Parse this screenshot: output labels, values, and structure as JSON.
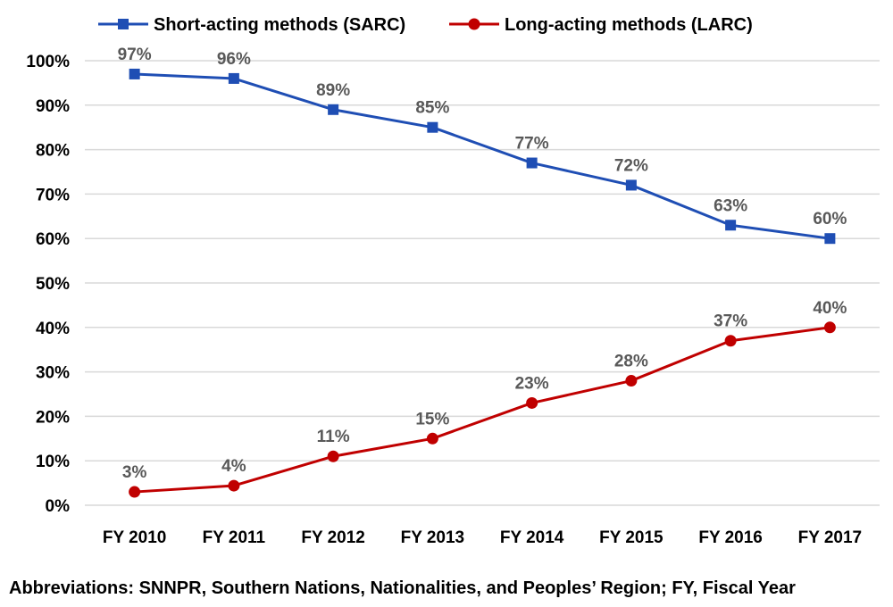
{
  "chart_data": {
    "type": "line",
    "title": "",
    "xlabel": "",
    "ylabel": "",
    "categories": [
      "FY 2010",
      "FY 2011",
      "FY 2012",
      "FY 2013",
      "FY 2014",
      "FY 2015",
      "FY 2016",
      "FY 2017"
    ],
    "series": [
      {
        "name": "Short-acting methods (SARC)",
        "values": [
          97,
          96,
          89,
          85,
          77,
          72,
          63,
          60
        ],
        "labels": [
          "97%",
          "96%",
          "89%",
          "85%",
          "77%",
          "72%",
          "63%",
          "60%"
        ],
        "color": "#1f4eb4",
        "marker": "square"
      },
      {
        "name": "Long-acting methods (LARC)",
        "values": [
          3,
          4.4,
          11,
          15,
          23,
          28,
          37,
          40
        ],
        "labels": [
          "3%",
          "4%",
          "11%",
          "15%",
          "23%",
          "28%",
          "37%",
          "40%"
        ],
        "color": "#c00000",
        "marker": "circle"
      }
    ],
    "ylim": [
      0,
      100
    ],
    "yticks": [
      0,
      10,
      20,
      30,
      40,
      50,
      60,
      70,
      80,
      90,
      100
    ],
    "ytick_labels": [
      "0%",
      "10%",
      "20%",
      "30%",
      "40%",
      "50%",
      "60%",
      "70%",
      "80%",
      "90%",
      "100%"
    ],
    "grid": "horizontal",
    "legend_position": "top"
  },
  "footnote": "Abbreviations: SNNPR, Southern Nations, Nationalities, and Peoples’ Region; FY, Fiscal Year",
  "colors": {
    "gridline": "#d9d9d9",
    "data_label": "#595959"
  }
}
